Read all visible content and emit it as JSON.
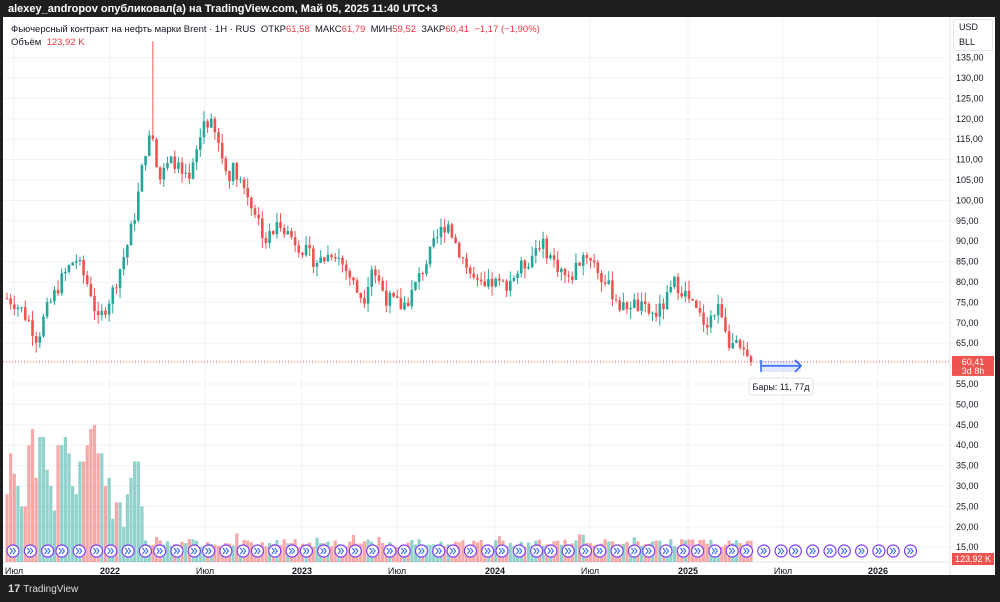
{
  "header": {
    "publisher": "alexey_andropov опубликовал(а) на TradingView.com, Май 05, 2025 11:40 UTC+3"
  },
  "legend": {
    "symbol": "Фьючерсный контракт на нефть марки Brent · 1H · RUS",
    "open_label": "ОТКР",
    "open": "61,58",
    "high_label": "МАКС",
    "high": "61,79",
    "low_label": "МИН",
    "low": "59,52",
    "close_label": "ЗАКР",
    "close": "60,41",
    "change": "−1,17 (−1,90%)",
    "volume_label": "Объём",
    "volume": "123,92 K"
  },
  "units": [
    "USD",
    "BLL"
  ],
  "price_label": {
    "value": "60,41",
    "countdown": "3d 8h"
  },
  "volume_label": "123,92 K",
  "measure_tooltip": "Бары: 11, 77д",
  "footer": {
    "brand": "TradingView"
  },
  "colors": {
    "up": "#26a69a",
    "down": "#ef5350",
    "accent": "#2962ff"
  },
  "chart_data": {
    "type": "candlestick",
    "y_ticks": [
      "135,00",
      "130,00",
      "125,00",
      "120,00",
      "115,00",
      "110,00",
      "105,00",
      "100,00",
      "95,00",
      "90,00",
      "85,00",
      "80,00",
      "75,00",
      "70,00",
      "65,00",
      "55,00",
      "50,00",
      "45,00",
      "40,00",
      "35,00",
      "30,00",
      "25,00",
      "20,00",
      "15,00"
    ],
    "x_ticks": [
      "Июл",
      "2022",
      "Июл",
      "2023",
      "Июл",
      "2024",
      "Июл",
      "2025",
      "Июл",
      "2026"
    ],
    "closes": [
      76,
      75,
      73,
      70,
      66,
      72,
      76,
      80,
      83,
      86,
      82,
      78,
      70,
      74,
      78,
      84,
      90,
      98,
      110,
      120,
      105,
      108,
      110,
      106,
      104,
      112,
      120,
      118,
      113,
      106,
      108,
      104,
      100,
      96,
      90,
      92,
      95,
      92,
      90,
      88,
      86,
      85,
      86,
      88,
      85,
      82,
      78,
      76,
      84,
      80,
      76,
      75,
      74,
      76,
      80,
      84,
      88,
      92,
      95,
      90,
      86,
      82,
      79,
      78,
      80,
      79,
      80,
      82,
      84,
      86,
      90,
      88,
      85,
      83,
      80,
      84,
      87,
      86,
      82,
      79,
      77,
      73,
      75,
      74,
      73,
      72,
      73,
      76,
      80,
      78,
      75,
      72,
      70,
      72,
      74,
      66,
      64,
      62,
      60.41
    ],
    "volume_early": [
      28,
      38,
      33,
      30,
      25,
      40,
      44,
      32,
      42,
      34,
      30,
      24,
      40,
      42,
      38,
      30,
      28,
      36,
      40,
      44,
      45,
      38,
      30,
      32,
      22,
      26,
      20,
      28,
      32,
      36,
      25
    ],
    "volume_late_max": 19
  }
}
